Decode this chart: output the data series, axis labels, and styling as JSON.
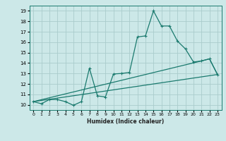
{
  "xlabel": "Humidex (Indice chaleur)",
  "bg_color": "#cce8e8",
  "grid_color": "#aacccc",
  "line_color": "#1a7a6e",
  "xlim": [
    -0.5,
    23.5
  ],
  "ylim": [
    9.5,
    19.5
  ],
  "xticks": [
    0,
    1,
    2,
    3,
    4,
    5,
    6,
    7,
    8,
    9,
    10,
    11,
    12,
    13,
    14,
    15,
    16,
    17,
    18,
    19,
    20,
    21,
    22,
    23
  ],
  "yticks": [
    10,
    11,
    12,
    13,
    14,
    15,
    16,
    17,
    18,
    19
  ],
  "series": [
    {
      "x": [
        0,
        1,
        2,
        3,
        4,
        5,
        6,
        7,
        8,
        9,
        10,
        11,
        12,
        13,
        14,
        15,
        16,
        17,
        18,
        19,
        20,
        21,
        22,
        23
      ],
      "y": [
        10.3,
        10.1,
        10.5,
        10.5,
        10.3,
        9.95,
        10.3,
        13.5,
        10.85,
        10.75,
        12.95,
        13.0,
        13.1,
        16.5,
        16.6,
        19.0,
        17.55,
        17.55,
        16.1,
        15.35,
        14.1,
        14.2,
        14.4,
        12.9
      ],
      "markers": true
    },
    {
      "x": [
        0,
        23
      ],
      "y": [
        10.3,
        12.9
      ],
      "markers": false
    },
    {
      "x": [
        0,
        21,
        22,
        23
      ],
      "y": [
        10.3,
        14.2,
        14.4,
        12.9
      ],
      "markers": false
    }
  ]
}
